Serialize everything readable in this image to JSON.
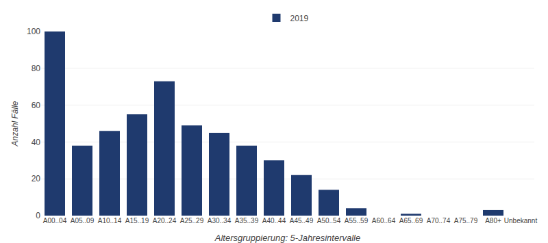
{
  "chart_data": {
    "type": "bar",
    "categories": [
      "A00..04",
      "A05..09",
      "A10..14",
      "A15..19",
      "A20..24",
      "A25..29",
      "A30..34",
      "A35..39",
      "A40..44",
      "A45..49",
      "A50..54",
      "A55..59",
      "A60..64",
      "A65..69",
      "A70..74",
      "A75..79",
      "A80+",
      "Unbekannt"
    ],
    "series": [
      {
        "name": "2019",
        "color": "#1F3A6E",
        "values": [
          100,
          38,
          46,
          55,
          73,
          49,
          45,
          38,
          30,
          22,
          14,
          4,
          0,
          1,
          0,
          0,
          3,
          0
        ]
      }
    ],
    "xlabel": "Altersgruppierung: 5-Jahresintervalle",
    "ylabel": "Anzahl Fälle",
    "ylim": [
      0,
      100
    ],
    "yticks": [
      0,
      20,
      40,
      60,
      80,
      100
    ],
    "grid": true,
    "legend": "top"
  }
}
